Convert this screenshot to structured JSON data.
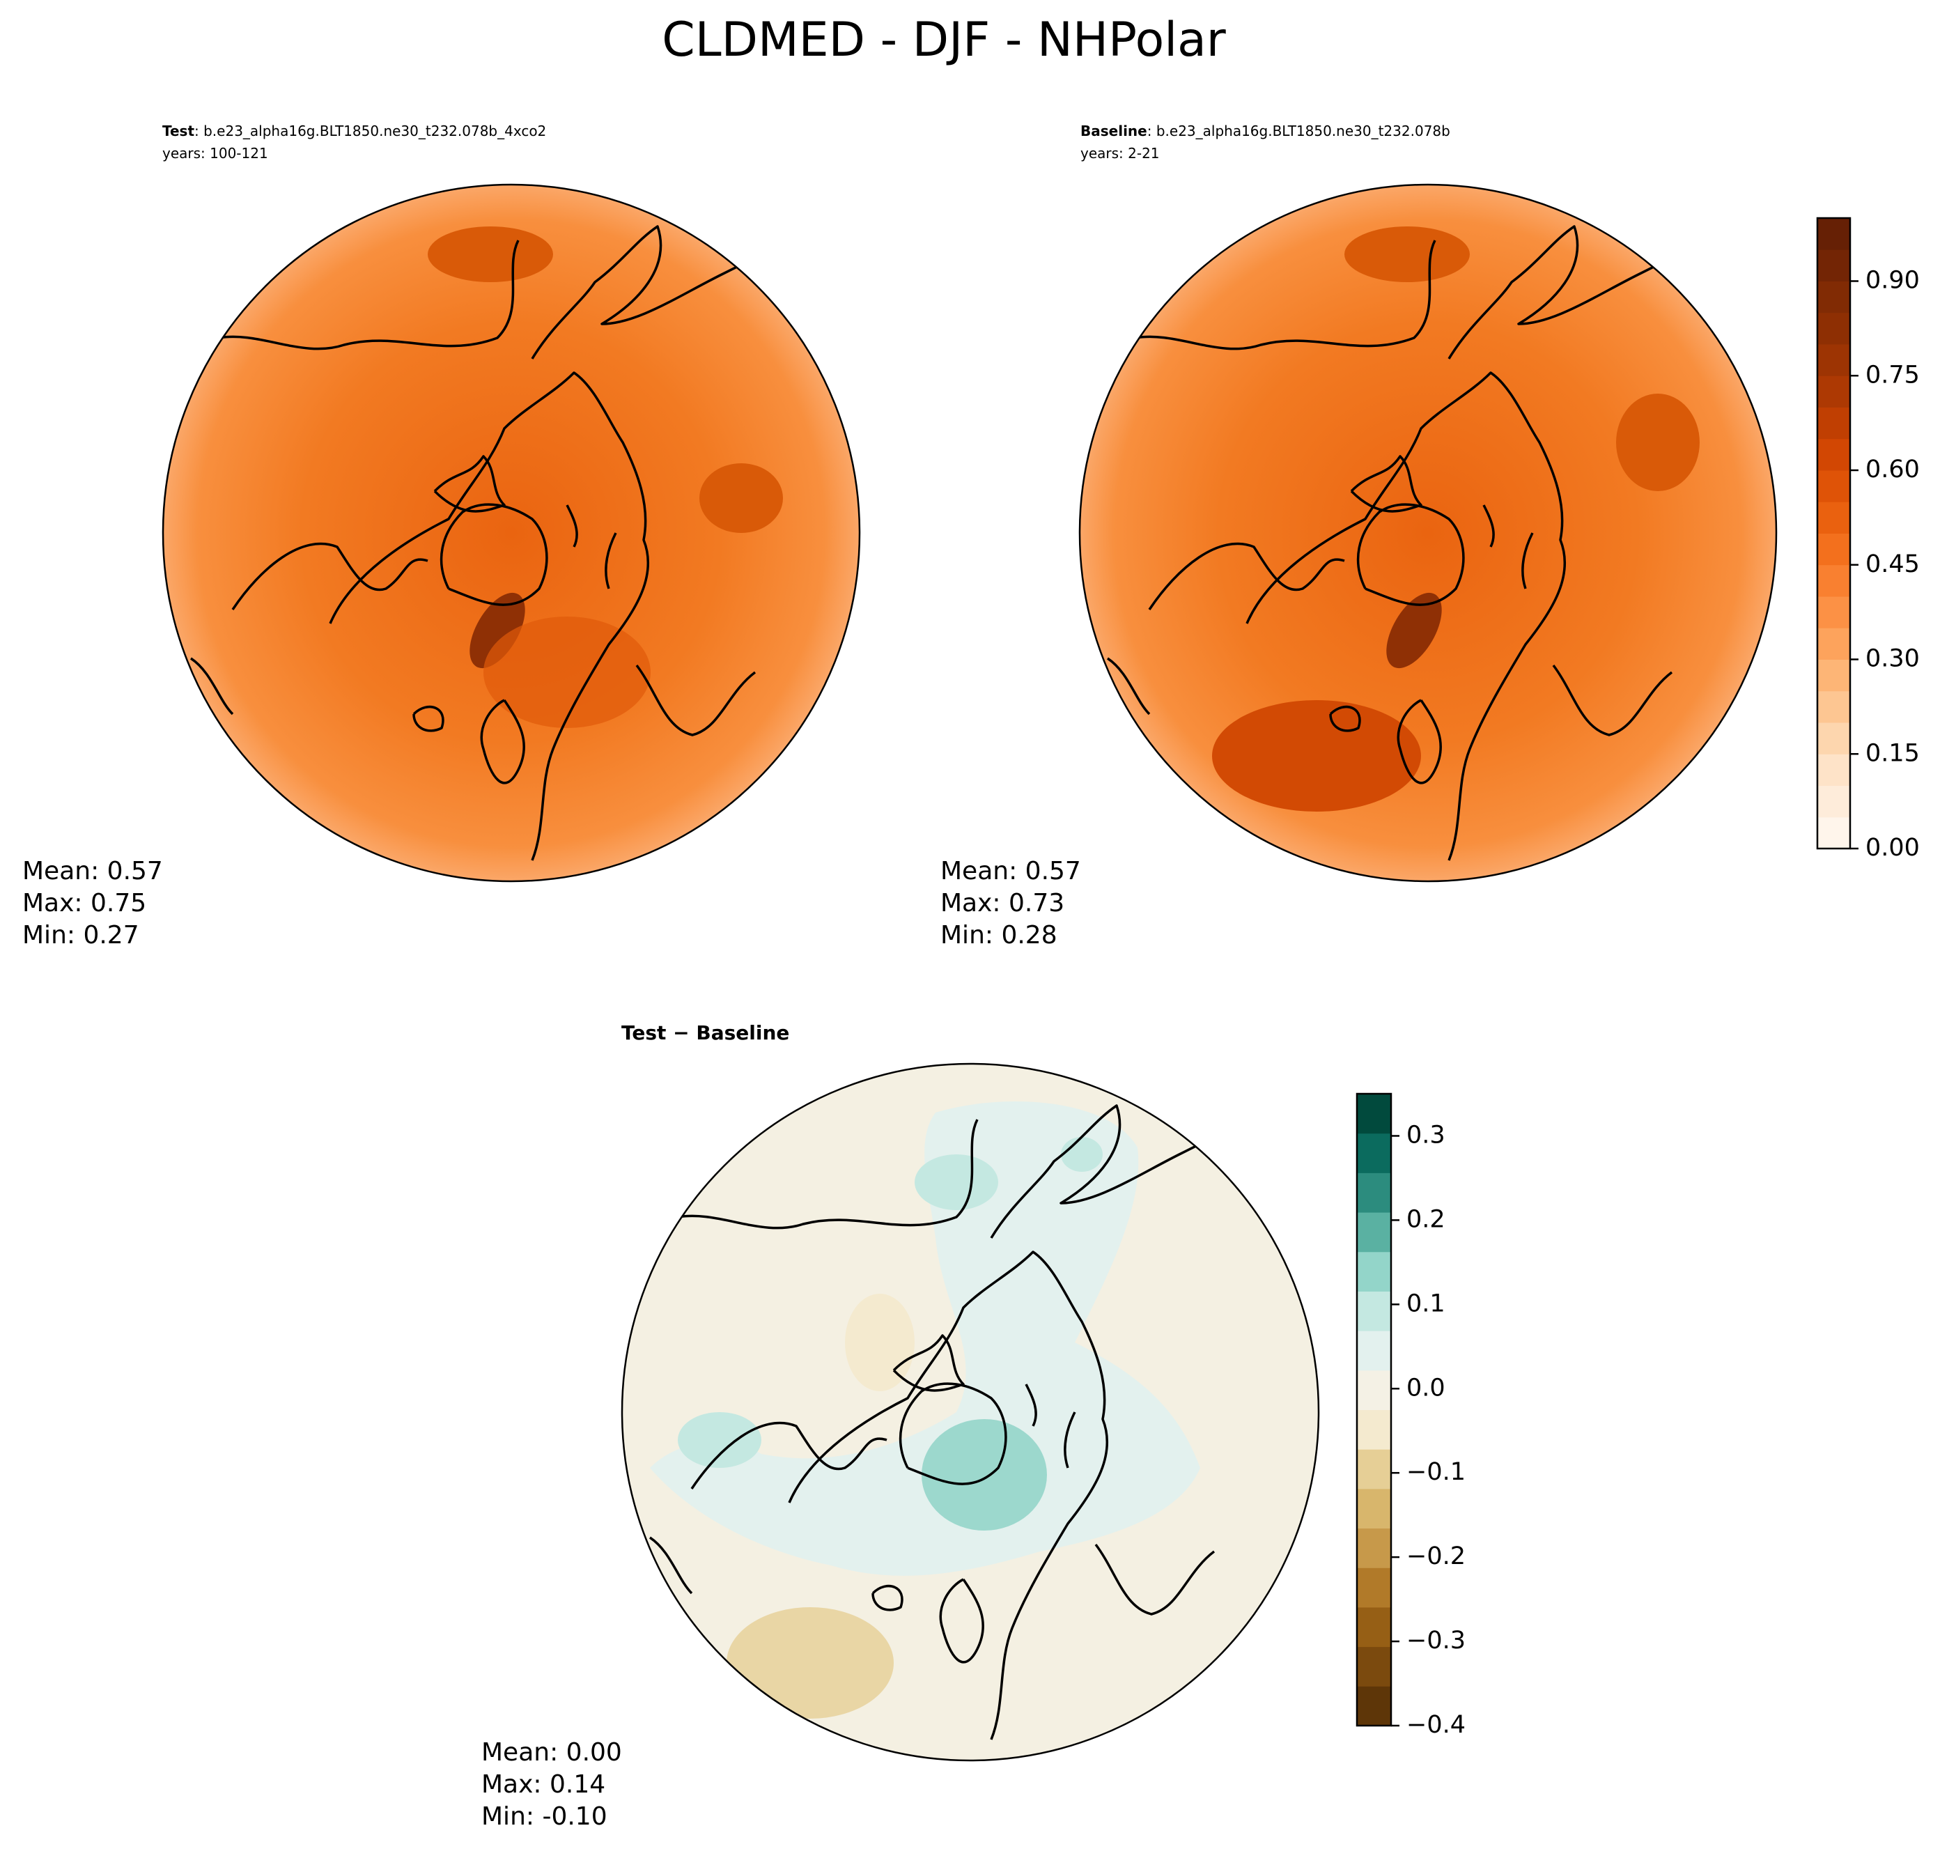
{
  "title": "CLDMED - DJF - NHPolar",
  "panels": [
    {
      "bold": "Test",
      "case": ": b.e23_alpha16g.BLT1850.ne30_t232.078b_4xco2",
      "years": "years: 100-121",
      "stats": [
        "Mean:  0.57",
        "Max:  0.75",
        "Min:  0.27"
      ]
    },
    {
      "bold": "Baseline",
      "case": ": b.e23_alpha16g.BLT1850.ne30_t232.078b",
      "years": "years: 2-21",
      "stats": [
        "Mean:  0.57",
        "Max:  0.73",
        "Min:  0.28"
      ]
    },
    {
      "bold": "Test − Baseline",
      "stats": [
        "Mean:  0.00",
        "Max:  0.14",
        "Min: -0.10"
      ]
    }
  ],
  "colorbars": [
    {
      "lim": [
        0,
        1.0
      ],
      "ticks": [
        {
          "value": 0,
          "label": "0.00"
        },
        {
          "value": 0.15,
          "label": "0.15"
        },
        {
          "value": 0.3,
          "label": "0.30"
        },
        {
          "value": 0.45,
          "label": "0.45"
        },
        {
          "value": 0.6,
          "label": "0.60"
        },
        {
          "value": 0.75,
          "label": "0.75"
        },
        {
          "value": 0.9,
          "label": "0.90"
        }
      ],
      "colors": [
        "#fff5eb",
        "#feecda",
        "#fee3c8",
        "#fdd6ae",
        "#fdc692",
        "#fdb576",
        "#fda35c",
        "#fc9145",
        "#f98030",
        "#f3701d",
        "#ea610f",
        "#df5307",
        "#d24703",
        "#c03f02",
        "#ad3903",
        "#9d3403",
        "#8e2f03",
        "#812b04",
        "#732505",
        "#662005"
      ]
    },
    {
      "lim": [
        -0.4,
        0.35
      ],
      "ticks": [
        {
          "value": -0.4,
          "label": "−0.4"
        },
        {
          "value": -0.3,
          "label": "−0.3"
        },
        {
          "value": -0.2,
          "label": "−0.2"
        },
        {
          "value": -0.1,
          "label": "−0.1"
        },
        {
          "value": 0,
          "label": "0.0"
        },
        {
          "value": 0.1,
          "label": "0.1"
        },
        {
          "value": 0.2,
          "label": "0.2"
        },
        {
          "value": 0.3,
          "label": "0.3"
        }
      ],
      "colors": [
        "#5e3608",
        "#7b4a0e",
        "#965f15",
        "#b17a29",
        "#c7994a",
        "#d8b66c",
        "#e6cf96",
        "#f4eacf",
        "#f4f1e5",
        "#e3f1ee",
        "#c4e8e1",
        "#93d5c9",
        "#5ab1a2",
        "#2c8c7e",
        "#0b6b5e",
        "#014a3d"
      ]
    }
  ]
}
